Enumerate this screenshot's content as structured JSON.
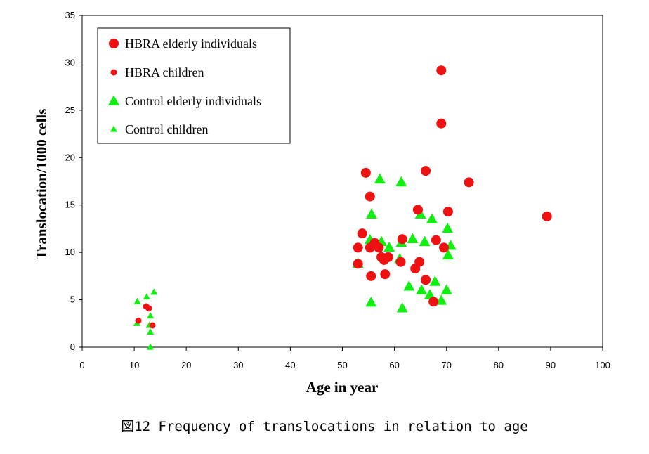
{
  "caption": "図12  Frequency of translocations in relation to age",
  "chart_data": {
    "type": "scatter",
    "xlabel": "Age in year",
    "ylabel": "Translocation/1000 cells",
    "xlim": [
      0,
      100
    ],
    "ylim": [
      0,
      35
    ],
    "x_ticks": [
      0,
      10,
      20,
      30,
      40,
      50,
      60,
      70,
      80,
      90,
      100
    ],
    "y_ticks": [
      0,
      5,
      10,
      15,
      20,
      25,
      30,
      35
    ],
    "grid": false,
    "legend_position": "top-left",
    "colors": {
      "hbra": "#ee1111",
      "control": "#11ee11"
    },
    "series": [
      {
        "name": "HBRA elderly individuals",
        "marker": "large-circle",
        "points": [
          [
            53,
            10.5
          ],
          [
            53,
            8.8
          ],
          [
            53.8,
            12
          ],
          [
            54.5,
            18.4
          ],
          [
            55.3,
            15.9
          ],
          [
            55.3,
            10.5
          ],
          [
            55.5,
            7.5
          ],
          [
            56.2,
            11
          ],
          [
            57,
            10.5
          ],
          [
            57.5,
            9.5
          ],
          [
            58,
            9.2
          ],
          [
            58.2,
            7.7
          ],
          [
            58.8,
            9.5
          ],
          [
            61.2,
            9
          ],
          [
            61.5,
            11.4
          ],
          [
            64,
            8.3
          ],
          [
            64.5,
            14.5
          ],
          [
            64.8,
            9
          ],
          [
            66,
            7.1
          ],
          [
            66,
            18.6
          ],
          [
            67.5,
            4.8
          ],
          [
            68,
            11.3
          ],
          [
            69,
            29.2
          ],
          [
            69,
            23.6
          ],
          [
            69.5,
            10.5
          ],
          [
            70.3,
            14.3
          ],
          [
            74.3,
            17.4
          ],
          [
            89.3,
            13.8
          ]
        ]
      },
      {
        "name": "HBRA children",
        "marker": "small-circle",
        "points": [
          [
            10.8,
            2.8
          ],
          [
            12.3,
            4.3
          ],
          [
            12.8,
            4.1
          ],
          [
            13.5,
            2.3
          ]
        ]
      },
      {
        "name": "Control elderly individuals",
        "marker": "large-triangle",
        "points": [
          [
            53,
            8.8
          ],
          [
            55.3,
            11.3
          ],
          [
            55.5,
            4.7
          ],
          [
            55.6,
            14
          ],
          [
            57.2,
            17.7
          ],
          [
            57.5,
            11.1
          ],
          [
            59,
            10.5
          ],
          [
            61,
            9.3
          ],
          [
            61.3,
            17.4
          ],
          [
            61.3,
            11
          ],
          [
            61.5,
            4.1
          ],
          [
            62.8,
            6.4
          ],
          [
            63.5,
            11.4
          ],
          [
            65,
            14
          ],
          [
            65.2,
            6
          ],
          [
            65.8,
            11.1
          ],
          [
            66.8,
            5.5
          ],
          [
            67.2,
            13.5
          ],
          [
            67.8,
            6.9
          ],
          [
            69,
            4.9
          ],
          [
            70,
            6
          ],
          [
            70.2,
            12.5
          ],
          [
            70.3,
            9.7
          ],
          [
            70.8,
            10.7
          ]
        ]
      },
      {
        "name": "Control children",
        "marker": "small-triangle",
        "points": [
          [
            10.5,
            2.5
          ],
          [
            10.6,
            4.8
          ],
          [
            12.4,
            5.3
          ],
          [
            12.9,
            2.3
          ],
          [
            13.1,
            1.6
          ],
          [
            13.1,
            3.3
          ],
          [
            13.1,
            0
          ],
          [
            13.8,
            5.8
          ]
        ]
      }
    ]
  }
}
